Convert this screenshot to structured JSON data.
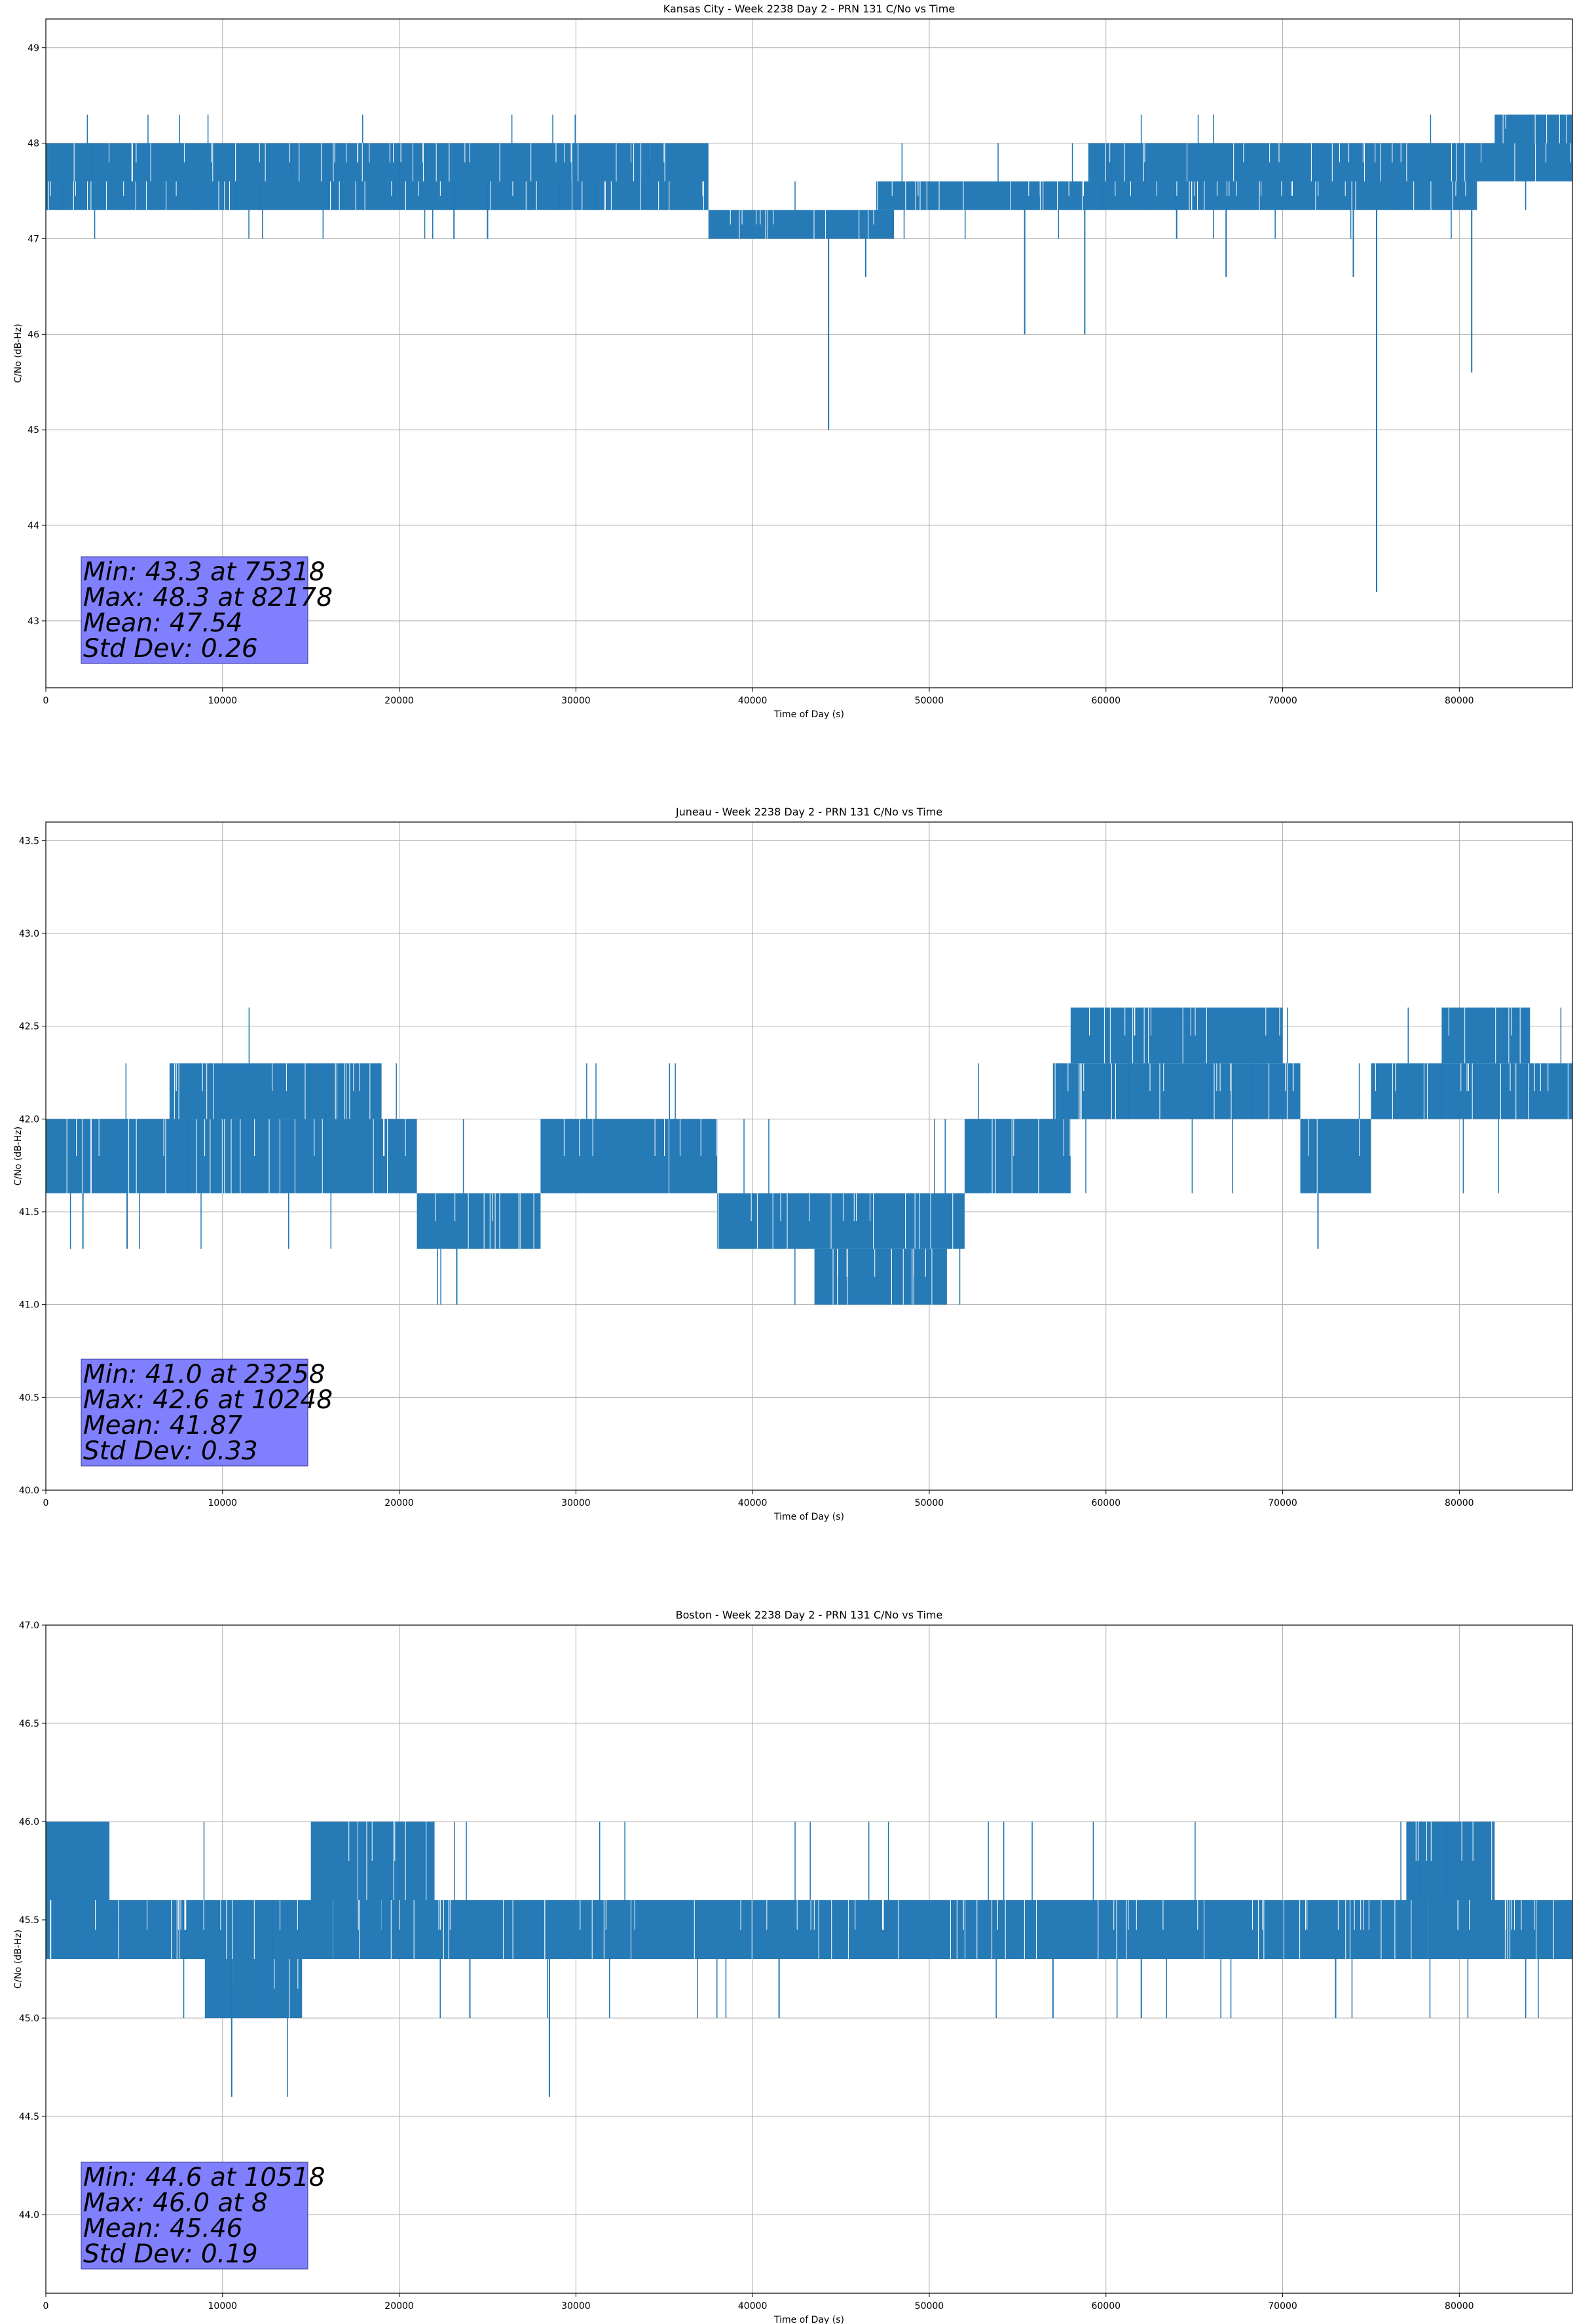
{
  "chart_data": [
    {
      "type": "line",
      "title": "Kansas City - Week 2238 Day 2 - PRN 131 C/No vs Time",
      "xlabel": "Time of Day (s)",
      "ylabel": "C/No (dB-Hz)",
      "xlim": [
        0,
        86400
      ],
      "ylim": [
        42.3,
        49.3
      ],
      "xticks": [
        0,
        10000,
        20000,
        30000,
        40000,
        50000,
        60000,
        70000,
        80000
      ],
      "yticks": [
        43,
        44,
        45,
        46,
        47,
        48,
        49
      ],
      "grid": true,
      "series_color": "#1f77b4",
      "stats_box_color": "#8080ff",
      "series": [
        {
          "levels": [
            47.0,
            47.3,
            47.6,
            48.0,
            48.3
          ],
          "bands": [
            {
              "x": [
                0,
                37500
              ],
              "low": 47.6,
              "high": 48.0
            },
            {
              "x": [
                0,
                37500
              ],
              "low": 47.3,
              "high": 47.6
            },
            {
              "x": [
                37500,
                48000
              ],
              "low": 47.0,
              "high": 47.3
            },
            {
              "x": [
                47000,
                81000
              ],
              "low": 47.3,
              "high": 47.6
            },
            {
              "x": [
                59000,
                86400
              ],
              "low": 47.6,
              "high": 48.0
            },
            {
              "x": [
                82000,
                86400
              ],
              "low": 48.0,
              "high": 48.3
            }
          ],
          "dips": [
            {
              "x": 44300,
              "y": 45.0
            },
            {
              "x": 46400,
              "y": 46.6
            },
            {
              "x": 55400,
              "y": 46.0
            },
            {
              "x": 58800,
              "y": 46.0
            },
            {
              "x": 66800,
              "y": 46.6
            },
            {
              "x": 74000,
              "y": 46.6
            },
            {
              "x": 75318,
              "y": 43.3
            },
            {
              "x": 80700,
              "y": 45.6
            },
            {
              "x": 23100,
              "y": 47.0
            },
            {
              "x": 25000,
              "y": 47.0
            },
            {
              "x": 64000,
              "y": 47.0
            }
          ]
        }
      ],
      "annotations": [
        "Min: 43.3 at 75318",
        "Max: 48.3 at 82178",
        "Mean: 47.54",
        "Std Dev: 0.26"
      ]
    },
    {
      "type": "line",
      "title": "Juneau - Week 2238 Day 2 - PRN 131 C/No vs Time",
      "xlabel": "Time of Day (s)",
      "ylabel": "C/No (dB-Hz)",
      "xlim": [
        0,
        86400
      ],
      "ylim": [
        40.0,
        43.6
      ],
      "xticks": [
        0,
        10000,
        20000,
        30000,
        40000,
        50000,
        60000,
        70000,
        80000
      ],
      "yticks": [
        40.0,
        40.5,
        41.0,
        41.5,
        42.0,
        42.5,
        43.0,
        43.5
      ],
      "grid": true,
      "series_color": "#1f77b4",
      "stats_box_color": "#8080ff",
      "series": [
        {
          "levels": [
            41.0,
            41.3,
            41.6,
            42.0,
            42.3,
            42.6
          ],
          "bands": [
            {
              "x": [
                0,
                21000
              ],
              "low": 41.6,
              "high": 42.0
            },
            {
              "x": [
                7000,
                19000
              ],
              "low": 42.0,
              "high": 42.3
            },
            {
              "x": [
                21000,
                28000
              ],
              "low": 41.3,
              "high": 41.6
            },
            {
              "x": [
                28000,
                38000
              ],
              "low": 41.6,
              "high": 42.0
            },
            {
              "x": [
                38000,
                52000
              ],
              "low": 41.3,
              "high": 41.6
            },
            {
              "x": [
                43500,
                51000
              ],
              "low": 41.0,
              "high": 41.3
            },
            {
              "x": [
                52000,
                58000
              ],
              "low": 41.6,
              "high": 42.0
            },
            {
              "x": [
                57000,
                71000
              ],
              "low": 42.0,
              "high": 42.3
            },
            {
              "x": [
                58000,
                70000
              ],
              "low": 42.3,
              "high": 42.6
            },
            {
              "x": [
                71000,
                75000
              ],
              "low": 41.6,
              "high": 42.0
            },
            {
              "x": [
                75000,
                86400
              ],
              "low": 42.0,
              "high": 42.3
            },
            {
              "x": [
                79000,
                84000
              ],
              "low": 42.3,
              "high": 42.6
            }
          ],
          "dips": [
            {
              "x": 23258,
              "y": 41.0
            },
            {
              "x": 2100,
              "y": 41.3
            },
            {
              "x": 4600,
              "y": 41.3
            },
            {
              "x": 72000,
              "y": 41.3
            }
          ]
        }
      ],
      "annotations": [
        "Min: 41.0 at 23258",
        "Max: 42.6 at 10248",
        "Mean: 41.87",
        "Std Dev: 0.33"
      ]
    },
    {
      "type": "line",
      "title": "Boston - Week 2238 Day 2 - PRN 131 C/No vs Time",
      "xlabel": "Time of Day (s)",
      "ylabel": "C/No (dB-Hz)",
      "xlim": [
        0,
        86400
      ],
      "ylim": [
        43.6,
        47.0
      ],
      "xticks": [
        0,
        10000,
        20000,
        30000,
        40000,
        50000,
        60000,
        70000,
        80000
      ],
      "yticks": [
        44.0,
        44.5,
        45.0,
        45.5,
        46.0,
        46.5,
        47.0
      ],
      "grid": true,
      "series_color": "#1f77b4",
      "stats_box_color": "#8080ff",
      "series": [
        {
          "levels": [
            44.6,
            45.0,
            45.3,
            45.6,
            46.0
          ],
          "bands": [
            {
              "x": [
                0,
                3600
              ],
              "low": 45.6,
              "high": 46.0
            },
            {
              "x": [
                0,
                86400
              ],
              "low": 45.3,
              "high": 45.6
            },
            {
              "x": [
                9000,
                14500
              ],
              "low": 45.0,
              "high": 45.3
            },
            {
              "x": [
                15000,
                22000
              ],
              "low": 45.6,
              "high": 46.0
            },
            {
              "x": [
                77000,
                82000
              ],
              "low": 45.6,
              "high": 46.0
            }
          ],
          "dips": [
            {
              "x": 10518,
              "y": 44.6
            },
            {
              "x": 28500,
              "y": 44.6
            },
            {
              "x": 24000,
              "y": 45.0
            },
            {
              "x": 41500,
              "y": 45.0
            },
            {
              "x": 57000,
              "y": 45.0
            },
            {
              "x": 62000,
              "y": 45.0
            },
            {
              "x": 73000,
              "y": 45.0
            }
          ]
        }
      ],
      "annotations": [
        "Min: 44.6 at 10518",
        "Max: 46.0 at 8",
        "Mean: 45.46",
        "Std Dev: 0.19"
      ]
    }
  ]
}
